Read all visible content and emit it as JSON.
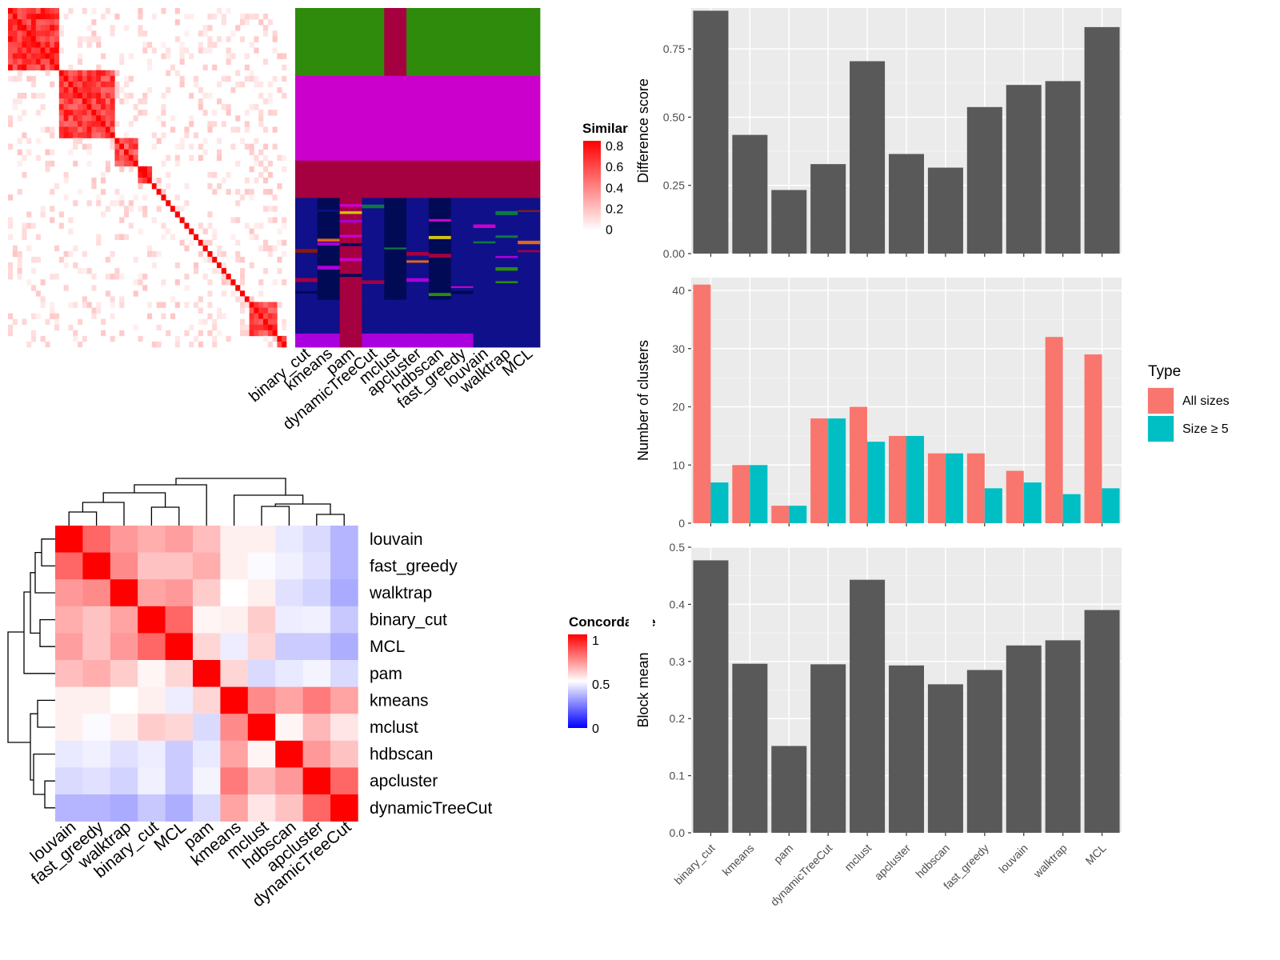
{
  "methods_bar_order": [
    "binary_cut",
    "kmeans",
    "pam",
    "dynamicTreeCut",
    "mclust",
    "apcluster",
    "hdbscan",
    "fast_greedy",
    "louvain",
    "walktrap",
    "MCL"
  ],
  "similarity_panel": {
    "legend_title": "Similarity",
    "legend_ticks": [
      "0.8",
      "0.6",
      "0.4",
      "0.2",
      "0"
    ],
    "column_labels": [
      "binary_cut",
      "kmeans",
      "pam",
      "dynamicTreeCut",
      "mclust",
      "apcluster",
      "hdbscan",
      "fast_greedy",
      "louvain",
      "walktrap",
      "MCL"
    ],
    "blocks": [
      {
        "start": 0.0,
        "end": 0.19,
        "level": 0.85
      },
      {
        "start": 0.19,
        "end": 0.39,
        "level": 0.8
      },
      {
        "start": 0.39,
        "end": 0.46,
        "level": 0.75
      },
      {
        "start": 0.46,
        "end": 0.52,
        "level": 0.9
      },
      {
        "start": 0.87,
        "end": 0.97,
        "level": 0.75
      },
      {
        "start": 0.97,
        "end": 1.0,
        "level": 0.9
      }
    ],
    "cluster_colors": [
      "#2e8b0b",
      "#cc00cc",
      "#a50040",
      "#10108a",
      "#010a55",
      "#aa00dd",
      "#d4c212",
      "#0c7a40",
      "#e06818",
      "#8e1a0a"
    ],
    "class_bands": [
      {
        "start": 0.0,
        "end": 0.2,
        "cells": [
          0,
          0,
          0,
          0,
          2,
          0,
          0,
          0,
          0,
          0,
          0
        ]
      },
      {
        "start": 0.2,
        "end": 0.45,
        "cells": [
          1,
          1,
          1,
          1,
          1,
          1,
          1,
          1,
          1,
          1,
          1
        ]
      },
      {
        "start": 0.45,
        "end": 0.56,
        "cells": [
          2,
          2,
          2,
          2,
          2,
          2,
          2,
          2,
          2,
          2,
          2
        ]
      },
      {
        "start": 0.56,
        "end": 0.86,
        "cells": [
          3,
          4,
          2,
          3,
          4,
          3,
          4,
          3,
          3,
          3,
          3
        ]
      },
      {
        "start": 0.86,
        "end": 0.96,
        "cells": [
          3,
          3,
          2,
          3,
          3,
          3,
          3,
          3,
          3,
          3,
          3
        ]
      },
      {
        "start": 0.96,
        "end": 1.0,
        "cells": [
          5,
          5,
          2,
          5,
          5,
          5,
          5,
          5,
          3,
          3,
          3
        ]
      }
    ]
  },
  "concordance_panel": {
    "legend_title": "Concordance",
    "legend_ticks": [
      "1",
      "0.5",
      "0"
    ],
    "labels": [
      "louvain",
      "fast_greedy",
      "walktrap",
      "binary_cut",
      "MCL",
      "pam",
      "kmeans",
      "mclust",
      "hdbscan",
      "apcluster",
      "dynamicTreeCut"
    ],
    "matrix": [
      [
        1.0,
        0.8,
        0.7,
        0.66,
        0.69,
        0.63,
        0.53,
        0.53,
        0.44,
        0.4,
        0.3
      ],
      [
        0.8,
        1.0,
        0.73,
        0.62,
        0.62,
        0.66,
        0.53,
        0.49,
        0.46,
        0.42,
        0.3
      ],
      [
        0.7,
        0.73,
        1.0,
        0.68,
        0.7,
        0.6,
        0.5,
        0.53,
        0.42,
        0.38,
        0.27
      ],
      [
        0.66,
        0.62,
        0.68,
        1.0,
        0.8,
        0.52,
        0.53,
        0.6,
        0.45,
        0.46,
        0.35
      ],
      [
        0.69,
        0.62,
        0.7,
        0.8,
        1.0,
        0.58,
        0.45,
        0.58,
        0.36,
        0.36,
        0.28
      ],
      [
        0.63,
        0.66,
        0.6,
        0.52,
        0.58,
        1.0,
        0.58,
        0.4,
        0.44,
        0.47,
        0.4
      ],
      [
        0.53,
        0.53,
        0.5,
        0.53,
        0.45,
        0.58,
        1.0,
        0.73,
        0.68,
        0.76,
        0.68
      ],
      [
        0.53,
        0.49,
        0.53,
        0.6,
        0.58,
        0.4,
        0.73,
        1.0,
        0.52,
        0.64,
        0.55
      ],
      [
        0.44,
        0.46,
        0.42,
        0.45,
        0.36,
        0.44,
        0.68,
        0.52,
        1.0,
        0.7,
        0.62
      ],
      [
        0.4,
        0.42,
        0.38,
        0.46,
        0.36,
        0.47,
        0.76,
        0.64,
        0.7,
        1.0,
        0.8
      ],
      [
        0.3,
        0.3,
        0.27,
        0.35,
        0.28,
        0.4,
        0.68,
        0.55,
        0.62,
        0.8,
        1.0
      ]
    ]
  },
  "chart_data": [
    {
      "type": "bar",
      "ylabel": "Difference score",
      "ylim": [
        0,
        0.9
      ],
      "yticks": [
        "0.00",
        "0.25",
        "0.50",
        "0.75"
      ],
      "categories": [
        "binary_cut",
        "kmeans",
        "pam",
        "dynamicTreeCut",
        "mclust",
        "apcluster",
        "hdbscan",
        "fast_greedy",
        "louvain",
        "walktrap",
        "MCL"
      ],
      "values": [
        0.89,
        0.435,
        0.233,
        0.328,
        0.705,
        0.365,
        0.315,
        0.537,
        0.618,
        0.632,
        0.83
      ]
    },
    {
      "type": "bar",
      "ylabel": "Number of clusters",
      "ylim": [
        0,
        42.2
      ],
      "yticks": [
        "0",
        "10",
        "20",
        "30",
        "40"
      ],
      "categories": [
        "binary_cut",
        "kmeans",
        "pam",
        "dynamicTreeCut",
        "mclust",
        "apcluster",
        "hdbscan",
        "fast_greedy",
        "louvain",
        "walktrap",
        "MCL"
      ],
      "legend_title": "Type",
      "series": [
        {
          "name": "All sizes",
          "color": "#f8766d",
          "values": [
            41,
            10,
            3,
            18,
            20,
            15,
            12,
            12,
            9,
            32,
            29
          ]
        },
        {
          "name": "Size ≥ 5",
          "color": "#00bfc4",
          "values": [
            7,
            10,
            3,
            18,
            14,
            15,
            12,
            6,
            7,
            5,
            6
          ]
        }
      ]
    },
    {
      "type": "bar",
      "ylabel": "Block mean",
      "ylim": [
        0,
        0.5
      ],
      "yticks": [
        "0.0",
        "0.1",
        "0.2",
        "0.3",
        "0.4",
        "0.5"
      ],
      "categories": [
        "binary_cut",
        "kmeans",
        "pam",
        "dynamicTreeCut",
        "mclust",
        "apcluster",
        "hdbscan",
        "fast_greedy",
        "louvain",
        "walktrap",
        "MCL"
      ],
      "values": [
        0.477,
        0.296,
        0.152,
        0.295,
        0.443,
        0.293,
        0.26,
        0.285,
        0.328,
        0.337,
        0.39
      ]
    }
  ]
}
